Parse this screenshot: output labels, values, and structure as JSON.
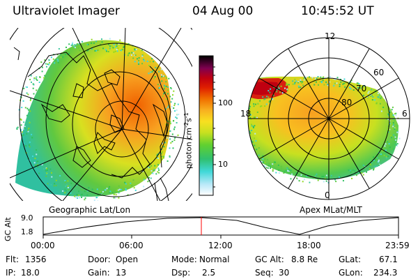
{
  "header": {
    "instrument": "Ultraviolet Imager",
    "date": "04 Aug 00",
    "time": "10:45:52 UT"
  },
  "maps": {
    "left_label": "Geographic Lat/Lon",
    "right_label": "Apex MLat/MLT",
    "right_mlt_labels": {
      "top": "12",
      "left": "18",
      "right": "6",
      "bottom": "0"
    },
    "right_lat_labels": [
      "60",
      "70",
      "80"
    ]
  },
  "colorbar": {
    "unit_label": "photon cm",
    "unit_sup1": "-2",
    "unit_mid": "s",
    "unit_sup2": "-1",
    "tick_labels": [
      "100",
      "10"
    ]
  },
  "altitude_plot": {
    "ylabel": "GC Alt",
    "ytick_top": "9.0",
    "ytick_bottom": "1.8",
    "xtick_labels": [
      "00:00",
      "06:00",
      "12:00",
      "18:00",
      "23:59"
    ]
  },
  "status": {
    "flt_label": "Flt:",
    "flt_value": "1356",
    "ip_label": "IP:",
    "ip_value": "18.0",
    "door_label": "Door:",
    "door_value": "Open",
    "gain_label": "Gain:",
    "gain_value": "13",
    "mode_label": "Mode:",
    "mode_value": "Normal",
    "dsp_label": "Dsp:",
    "dsp_value": "2.5",
    "gcalt_label": "GC Alt:",
    "gcalt_value": "8.8 Re",
    "seq_label": "Seq:",
    "seq_value": "30",
    "glat_label": "GLat:",
    "glat_value": "67.1",
    "glon_label": "GLon:",
    "glon_value": "234.3"
  },
  "colors": {
    "marker": "#ff0000",
    "colormap": [
      "#ffffff",
      "#b8e8f8",
      "#40d8d8",
      "#40c8a0",
      "#30c050",
      "#90d820",
      "#d8e820",
      "#f8c820",
      "#f89810",
      "#f06000",
      "#e02000",
      "#c00010",
      "#800040",
      "#400040",
      "#000000"
    ]
  }
}
